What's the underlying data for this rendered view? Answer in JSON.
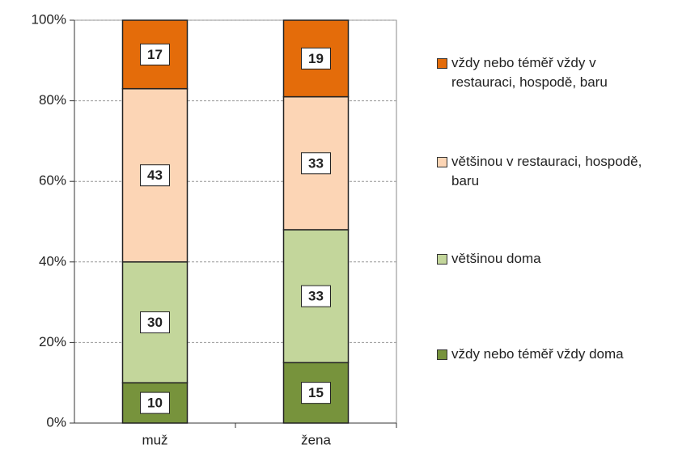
{
  "chart_data": {
    "type": "stacked_bar",
    "categories": [
      "muž",
      "žena"
    ],
    "series": [
      {
        "name": "vždy nebo téměř vždy doma",
        "color": "#77933c",
        "values": [
          10,
          15
        ]
      },
      {
        "name": "většinou doma",
        "color": "#c3d69b",
        "values": [
          30,
          33
        ]
      },
      {
        "name": "většinou v restauraci, hospodě, baru",
        "color": "#fcd5b5",
        "values": [
          43,
          33
        ]
      },
      {
        "name": "vždy nebo téměř vždy v restauraci, hospodě, baru",
        "color": "#e46c0a",
        "values": [
          17,
          19
        ]
      }
    ],
    "ylim": [
      0,
      100
    ],
    "yticks": [
      {
        "value": 0,
        "label": "0%"
      },
      {
        "value": 20,
        "label": "20%"
      },
      {
        "value": 40,
        "label": "40%"
      },
      {
        "value": 60,
        "label": "60%"
      },
      {
        "value": 80,
        "label": "80%"
      },
      {
        "value": 100,
        "label": "100%"
      }
    ],
    "grid": true
  }
}
